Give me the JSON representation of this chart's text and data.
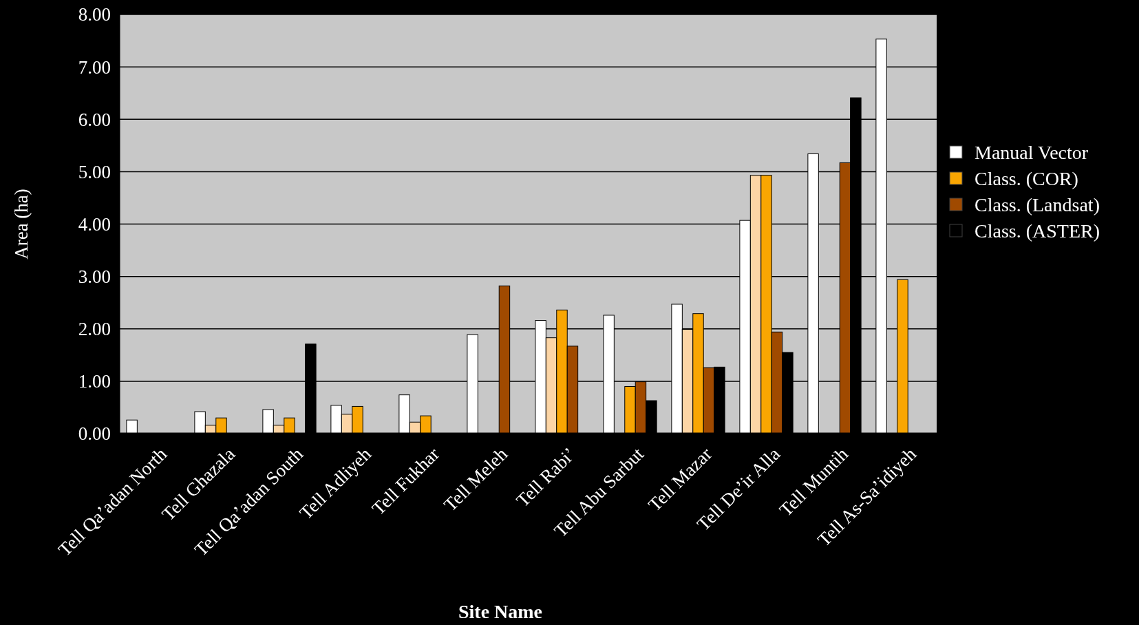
{
  "chart_data": {
    "type": "bar",
    "xlabel": "Site Name",
    "ylabel": "Area (ha)",
    "categories": [
      "Tell Qa’adan North",
      "Tell Ghazala",
      "Tell Qa’adan South",
      "Tell Adliyeh",
      "Tell Fukhar",
      "Tell Meleh",
      "Tell Rabi’",
      "Tell Abu Sarbut",
      "Tell Mazar",
      "Tell De’ir Alla",
      "Tell Muntih",
      "Tell As-Sa’idiyeh"
    ],
    "series": [
      {
        "name": "Manual Vector",
        "color": "#ffffff",
        "values": [
          0.26,
          0.42,
          0.46,
          0.54,
          0.74,
          1.89,
          2.16,
          2.26,
          2.47,
          4.07,
          5.34,
          7.53
        ]
      },
      {
        "color": "#fcd5a5",
        "values": [
          null,
          0.16,
          0.16,
          0.37,
          0.22,
          null,
          1.83,
          null,
          1.99,
          4.93,
          null,
          null
        ]
      },
      {
        "name": "Class. (COR)",
        "color": "#f9a602",
        "values": [
          null,
          0.3,
          0.3,
          0.52,
          0.34,
          null,
          2.36,
          0.9,
          2.29,
          4.93,
          null,
          2.94
        ]
      },
      {
        "name": "Class. (Landsat)",
        "color": "#a04a00",
        "values": [
          null,
          null,
          null,
          null,
          null,
          2.82,
          1.67,
          0.99,
          1.26,
          1.94,
          5.17,
          null
        ]
      },
      {
        "name": "Class. (ASTER)",
        "color": "#000000",
        "values": [
          null,
          null,
          1.71,
          null,
          null,
          null,
          null,
          0.63,
          1.27,
          1.55,
          6.41,
          null
        ]
      }
    ],
    "ylim": [
      0,
      8
    ],
    "yticks": [
      {
        "value": 0,
        "label": "0.00"
      },
      {
        "value": 1,
        "label": "1.00"
      },
      {
        "value": 2,
        "label": "2.00"
      },
      {
        "value": 3,
        "label": "3.00"
      },
      {
        "value": 4,
        "label": "4.00"
      },
      {
        "value": 5,
        "label": "5.00"
      },
      {
        "value": 6,
        "label": "6.00"
      },
      {
        "value": 7,
        "label": "7.00"
      },
      {
        "value": 8,
        "label": "8.00"
      }
    ],
    "grid": "y",
    "legend": "right"
  }
}
